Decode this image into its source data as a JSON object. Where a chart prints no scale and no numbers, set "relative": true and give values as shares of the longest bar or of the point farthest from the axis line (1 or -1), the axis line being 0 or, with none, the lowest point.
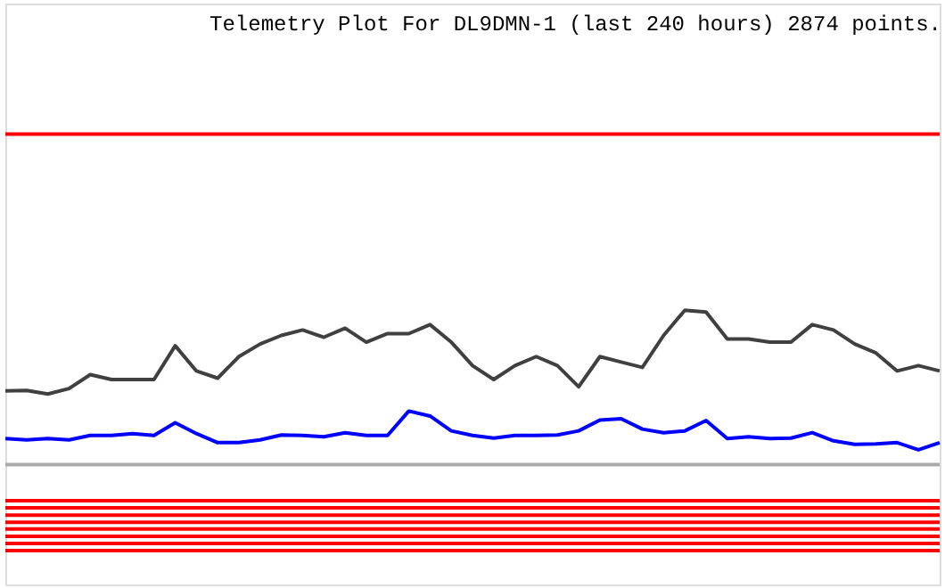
{
  "chart_data": {
    "type": "line",
    "relative": true,
    "title": "Telemetry Plot For DL9DMN-1 (last 240 hours) 2874 points.",
    "categories": [
      null,
      null,
      null,
      null,
      null,
      null,
      null,
      null,
      null,
      null,
      null,
      null,
      null,
      null,
      null,
      null,
      null,
      null,
      null,
      null,
      null,
      null,
      null,
      null,
      null,
      null,
      null,
      null,
      null,
      null,
      null,
      null,
      null,
      null,
      null,
      null,
      null,
      null,
      null,
      null,
      null,
      null,
      null,
      null,
      null
    ],
    "series": [
      {
        "color": "#ff0000",
        "values": [
          1,
          1,
          1,
          1,
          1,
          1,
          1,
          1,
          1,
          1,
          1,
          1,
          1,
          1,
          1,
          1,
          1,
          1,
          1,
          1,
          1,
          1,
          1,
          1,
          1,
          1,
          1,
          1,
          1,
          1,
          1,
          1,
          1,
          1,
          1,
          1,
          1,
          1,
          1,
          1,
          1,
          1,
          1,
          1,
          1
        ]
      },
      {
        "color": "#404040",
        "values": [
          0.43,
          0.431,
          0.423,
          0.435,
          0.466,
          0.455,
          0.455,
          0.455,
          0.53,
          0.474,
          0.458,
          0.506,
          0.534,
          0.553,
          0.565,
          0.549,
          0.569,
          0.538,
          0.557,
          0.557,
          0.577,
          0.538,
          0.486,
          0.455,
          0.486,
          0.506,
          0.486,
          0.439,
          0.506,
          0.494,
          0.482,
          0.553,
          0.609,
          0.605,
          0.545,
          0.545,
          0.538,
          0.538,
          0.577,
          0.565,
          0.534,
          0.514,
          0.474,
          0.486,
          0.474
        ]
      },
      {
        "color": "#0000ff",
        "values": [
          0.324,
          0.321,
          0.324,
          0.321,
          0.331,
          0.331,
          0.335,
          0.331,
          0.359,
          0.335,
          0.315,
          0.315,
          0.321,
          0.332,
          0.331,
          0.328,
          0.337,
          0.331,
          0.331,
          0.385,
          0.374,
          0.341,
          0.331,
          0.325,
          0.331,
          0.331,
          0.332,
          0.341,
          0.365,
          0.368,
          0.345,
          0.337,
          0.341,
          0.364,
          0.324,
          0.328,
          0.324,
          0.325,
          0.337,
          0.319,
          0.311,
          0.312,
          0.315,
          0.299,
          0.315
        ]
      },
      {
        "color": "#aaaaaa",
        "values": [
          0.266,
          0.266,
          0.266,
          0.266,
          0.266,
          0.266,
          0.266,
          0.266,
          0.266,
          0.266,
          0.266,
          0.266,
          0.266,
          0.266,
          0.266,
          0.266,
          0.266,
          0.266,
          0.266,
          0.266,
          0.266,
          0.266,
          0.266,
          0.266,
          0.266,
          0.266,
          0.266,
          0.266,
          0.266,
          0.266,
          0.266,
          0.266,
          0.266,
          0.266,
          0.266,
          0.266,
          0.266,
          0.266,
          0.266,
          0.266,
          0.266,
          0.266,
          0.266,
          0.266,
          0.266
        ]
      },
      {
        "color": "#ff0000",
        "values": [
          0.186,
          0.186,
          0.186,
          0.186,
          0.186,
          0.186,
          0.186,
          0.186,
          0.186,
          0.186,
          0.186,
          0.186,
          0.186,
          0.186,
          0.186,
          0.186,
          0.186,
          0.186,
          0.186,
          0.186,
          0.186,
          0.186,
          0.186,
          0.186,
          0.186,
          0.186,
          0.186,
          0.186,
          0.186,
          0.186,
          0.186,
          0.186,
          0.186,
          0.186,
          0.186,
          0.186,
          0.186,
          0.186,
          0.186,
          0.186,
          0.186,
          0.186,
          0.186,
          0.186,
          0.186
        ]
      },
      {
        "color": "#ff0000",
        "values": [
          0.17,
          0.17,
          0.17,
          0.17,
          0.17,
          0.17,
          0.17,
          0.17,
          0.17,
          0.17,
          0.17,
          0.17,
          0.17,
          0.17,
          0.17,
          0.17,
          0.17,
          0.17,
          0.17,
          0.17,
          0.17,
          0.17,
          0.17,
          0.17,
          0.17,
          0.17,
          0.17,
          0.17,
          0.17,
          0.17,
          0.17,
          0.17,
          0.17,
          0.17,
          0.17,
          0.17,
          0.17,
          0.17,
          0.17,
          0.17,
          0.17,
          0.17,
          0.17,
          0.17,
          0.17
        ]
      },
      {
        "color": "#ff0000",
        "values": [
          0.154,
          0.154,
          0.154,
          0.154,
          0.154,
          0.154,
          0.154,
          0.154,
          0.154,
          0.154,
          0.154,
          0.154,
          0.154,
          0.154,
          0.154,
          0.154,
          0.154,
          0.154,
          0.154,
          0.154,
          0.154,
          0.154,
          0.154,
          0.154,
          0.154,
          0.154,
          0.154,
          0.154,
          0.154,
          0.154,
          0.154,
          0.154,
          0.154,
          0.154,
          0.154,
          0.154,
          0.154,
          0.154,
          0.154,
          0.154,
          0.154,
          0.154,
          0.154,
          0.154,
          0.154
        ]
      },
      {
        "color": "#ff0000",
        "values": [
          0.138,
          0.138,
          0.138,
          0.138,
          0.138,
          0.138,
          0.138,
          0.138,
          0.138,
          0.138,
          0.138,
          0.138,
          0.138,
          0.138,
          0.138,
          0.138,
          0.138,
          0.138,
          0.138,
          0.138,
          0.138,
          0.138,
          0.138,
          0.138,
          0.138,
          0.138,
          0.138,
          0.138,
          0.138,
          0.138,
          0.138,
          0.138,
          0.138,
          0.138,
          0.138,
          0.138,
          0.138,
          0.138,
          0.138,
          0.138,
          0.138,
          0.138,
          0.138,
          0.138,
          0.138
        ]
      },
      {
        "color": "#ff0000",
        "values": [
          0.123,
          0.123,
          0.123,
          0.123,
          0.123,
          0.123,
          0.123,
          0.123,
          0.123,
          0.123,
          0.123,
          0.123,
          0.123,
          0.123,
          0.123,
          0.123,
          0.123,
          0.123,
          0.123,
          0.123,
          0.123,
          0.123,
          0.123,
          0.123,
          0.123,
          0.123,
          0.123,
          0.123,
          0.123,
          0.123,
          0.123,
          0.123,
          0.123,
          0.123,
          0.123,
          0.123,
          0.123,
          0.123,
          0.123,
          0.123,
          0.123,
          0.123,
          0.123,
          0.123,
          0.123
        ]
      },
      {
        "color": "#ff0000",
        "values": [
          0.107,
          0.107,
          0.107,
          0.107,
          0.107,
          0.107,
          0.107,
          0.107,
          0.107,
          0.107,
          0.107,
          0.107,
          0.107,
          0.107,
          0.107,
          0.107,
          0.107,
          0.107,
          0.107,
          0.107,
          0.107,
          0.107,
          0.107,
          0.107,
          0.107,
          0.107,
          0.107,
          0.107,
          0.107,
          0.107,
          0.107,
          0.107,
          0.107,
          0.107,
          0.107,
          0.107,
          0.107,
          0.107,
          0.107,
          0.107,
          0.107,
          0.107,
          0.107,
          0.107,
          0.107
        ]
      },
      {
        "color": "#ff0000",
        "values": [
          0.091,
          0.091,
          0.091,
          0.091,
          0.091,
          0.091,
          0.091,
          0.091,
          0.091,
          0.091,
          0.091,
          0.091,
          0.091,
          0.091,
          0.091,
          0.091,
          0.091,
          0.091,
          0.091,
          0.091,
          0.091,
          0.091,
          0.091,
          0.091,
          0.091,
          0.091,
          0.091,
          0.091,
          0.091,
          0.091,
          0.091,
          0.091,
          0.091,
          0.091,
          0.091,
          0.091,
          0.091,
          0.091,
          0.091,
          0.091,
          0.091,
          0.091,
          0.091,
          0.091,
          0.091
        ]
      },
      {
        "color": "#ff0000",
        "values": [
          0.075,
          0.075,
          0.075,
          0.075,
          0.075,
          0.075,
          0.075,
          0.075,
          0.075,
          0.075,
          0.075,
          0.075,
          0.075,
          0.075,
          0.075,
          0.075,
          0.075,
          0.075,
          0.075,
          0.075,
          0.075,
          0.075,
          0.075,
          0.075,
          0.075,
          0.075,
          0.075,
          0.075,
          0.075,
          0.075,
          0.075,
          0.075,
          0.075,
          0.075,
          0.075,
          0.075,
          0.075,
          0.075,
          0.075,
          0.075,
          0.075,
          0.075,
          0.075,
          0.075,
          0.075
        ]
      }
    ]
  }
}
